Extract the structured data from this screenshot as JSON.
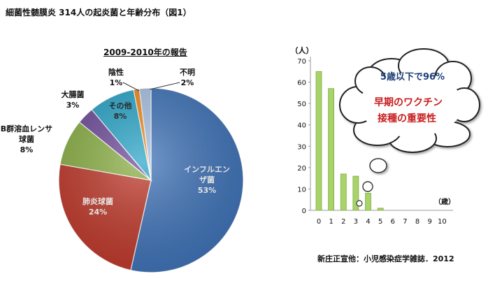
{
  "header": {
    "title": "細菌性髄膜炎 314人の起炎菌と年齢分布（図1）",
    "source": "新庄正宣他：小児感染症学雑誌．2012"
  },
  "chart_data": [
    {
      "type": "pie",
      "title": "2009-2010年の報告",
      "slices": [
        {
          "label": "インフルエンザ菌",
          "label_lines": [
            "インフルエン",
            "ザ菌"
          ],
          "value": 53,
          "value_text": "53%",
          "color": "#3f73b8"
        },
        {
          "label": "肺炎球菌",
          "label_lines": [
            "肺炎球菌"
          ],
          "value": 24,
          "value_text": "24%",
          "color": "#c0392b"
        },
        {
          "label": "B群溶血レンサ球菌",
          "label_lines": [
            "B群溶血レンサ",
            "球菌"
          ],
          "value": 8,
          "value_text": "8%",
          "color": "#8bb046"
        },
        {
          "label": "大腸菌",
          "label_lines": [
            "大腸菌"
          ],
          "value": 3,
          "value_text": "3%",
          "color": "#6f4c9b"
        },
        {
          "label": "その他",
          "label_lines": [
            "その他"
          ],
          "value": 8,
          "value_text": "8%",
          "color": "#2aa5c8"
        },
        {
          "label": "陰性",
          "label_lines": [
            "陰性"
          ],
          "value": 1,
          "value_text": "1%",
          "color": "#ee8a1b"
        },
        {
          "label": "不明",
          "label_lines": [
            "不明"
          ],
          "value": 2,
          "value_text": "2%",
          "color": "#a7c1e3"
        }
      ]
    },
    {
      "type": "bar",
      "categories": [
        "0",
        "1",
        "2",
        "3",
        "4",
        "5",
        "6",
        "7",
        "8",
        "9",
        "10"
      ],
      "values": [
        65,
        57,
        17,
        16,
        8,
        1,
        0,
        0,
        0,
        0,
        0
      ],
      "ylim": [
        0,
        70
      ],
      "yticks": [
        0,
        10,
        20,
        30,
        40,
        50,
        60,
        70
      ],
      "ylabel": "（人）",
      "xlabel": "（歳）",
      "bar_color": "#a8d26a",
      "bar_edge": "#7fae3f",
      "callout": {
        "line1": "5歳以下で96%",
        "line2": "早期のワクチン",
        "line3": "接種の重要性",
        "line1_color": "#1c3f78",
        "line23_color": "#c81e1e"
      }
    }
  ]
}
